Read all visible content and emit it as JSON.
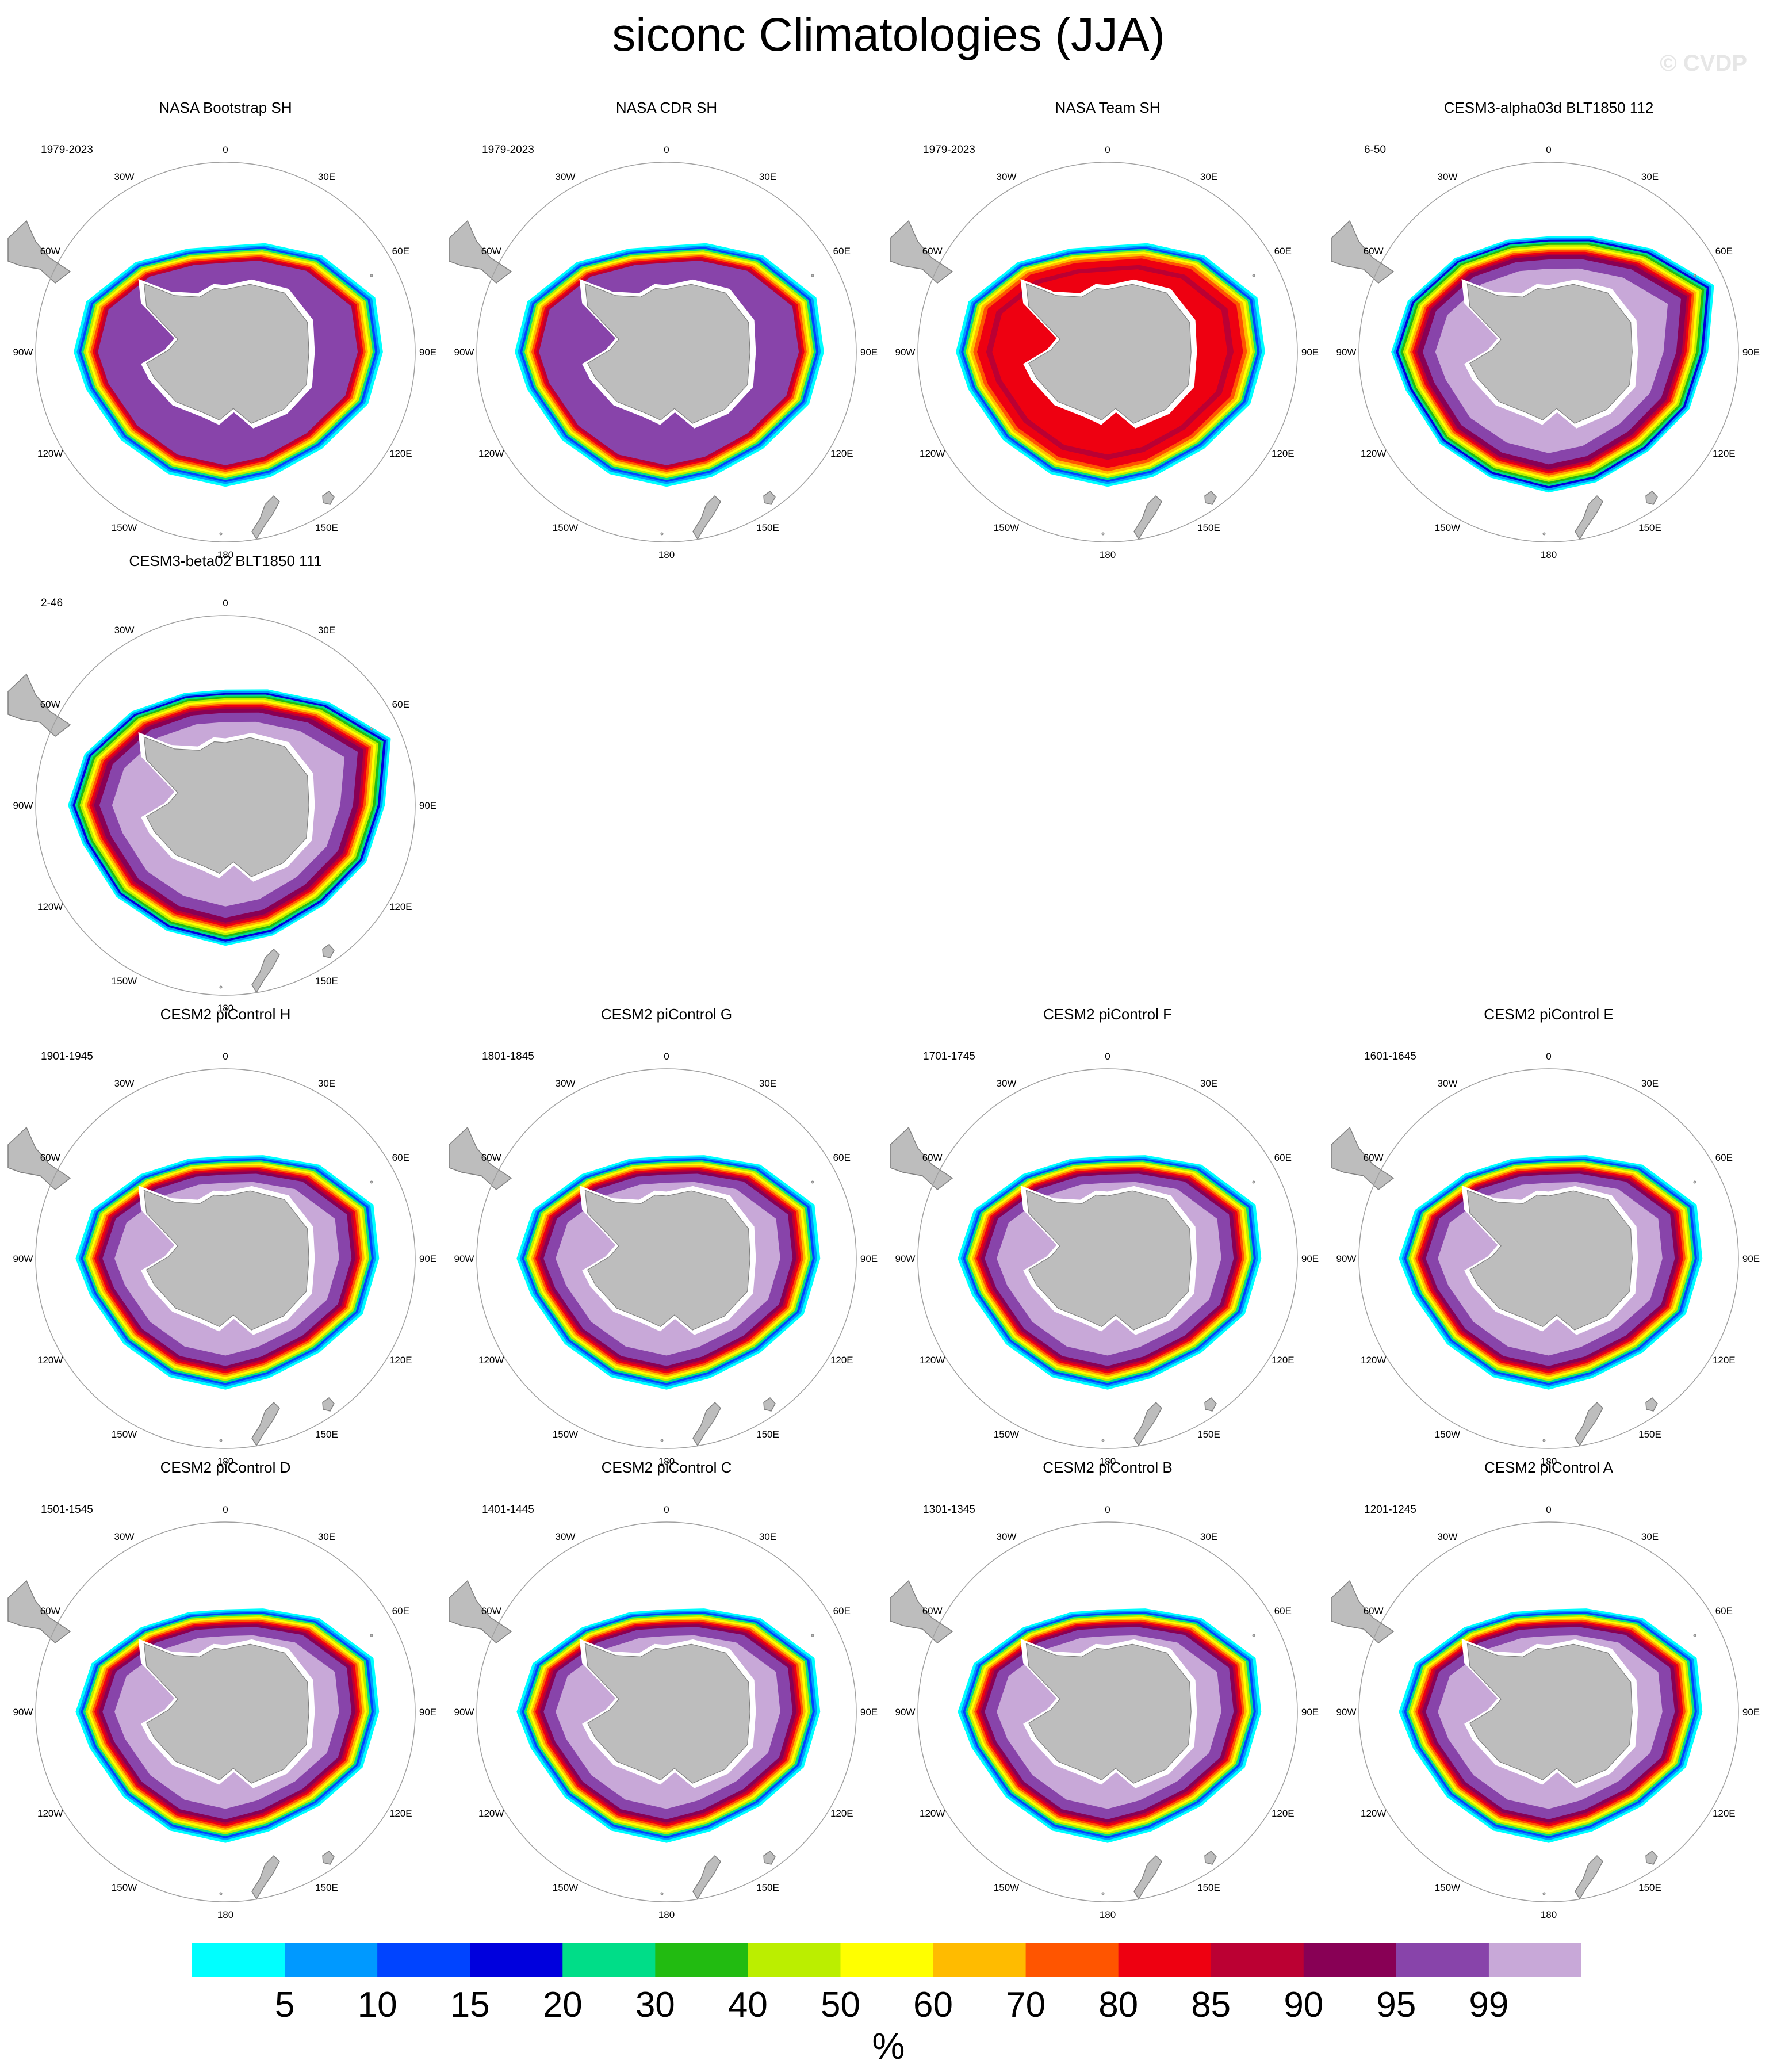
{
  "title": "siconc Climatologies (JJA)",
  "watermark": "© CVDP",
  "colors": {
    "land": "#bdbdbd",
    "land_edge": "#808080",
    "map_edge": "#a0a0a0"
  },
  "colorbar": {
    "unit": "%",
    "labels": [
      "5",
      "10",
      "15",
      "20",
      "30",
      "40",
      "50",
      "60",
      "70",
      "80",
      "85",
      "90",
      "95",
      "99"
    ],
    "colors": [
      "#00ffff",
      "#0099ff",
      "#0044ff",
      "#0000dd",
      "#00dd88",
      "#22bb11",
      "#bbee00",
      "#ffff00",
      "#ffbb00",
      "#ff5500",
      "#ee0011",
      "#bb0033",
      "#880055",
      "#8844aa",
      "#c8a8d8"
    ]
  },
  "longitude_labels": [
    "0",
    "30E",
    "60E",
    "90E",
    "120E",
    "150E",
    "180",
    "150W",
    "120W",
    "90W",
    "60W",
    "30W"
  ],
  "panels": [
    {
      "title": "NASA Bootstrap SH",
      "years": "1979-2023",
      "row": 0,
      "col": 0,
      "style": "obs"
    },
    {
      "title": "NASA CDR SH",
      "years": "1979-2023",
      "row": 0,
      "col": 1,
      "style": "obs"
    },
    {
      "title": "NASA Team SH",
      "years": "1979-2023",
      "row": 0,
      "col": 2,
      "style": "team"
    },
    {
      "title": "CESM3-alpha03d BLT1850 112",
      "years": "6-50",
      "row": 0,
      "col": 3,
      "style": "cesm3"
    },
    {
      "title": "CESM3-beta02 BLT1850 111",
      "years": "2-46",
      "row": 1,
      "col": 0,
      "style": "cesm3"
    },
    {
      "title": "CESM2 piControl H",
      "years": "1901-1945",
      "row": 2,
      "col": 0,
      "style": "cesm2"
    },
    {
      "title": "CESM2 piControl G",
      "years": "1801-1845",
      "row": 2,
      "col": 1,
      "style": "cesm2"
    },
    {
      "title": "CESM2 piControl F",
      "years": "1701-1745",
      "row": 2,
      "col": 2,
      "style": "cesm2"
    },
    {
      "title": "CESM2 piControl E",
      "years": "1601-1645",
      "row": 2,
      "col": 3,
      "style": "cesm2"
    },
    {
      "title": "CESM2 piControl D",
      "years": "1501-1545",
      "row": 3,
      "col": 0,
      "style": "cesm2"
    },
    {
      "title": "CESM2 piControl C",
      "years": "1401-1445",
      "row": 3,
      "col": 1,
      "style": "cesm2"
    },
    {
      "title": "CESM2 piControl B",
      "years": "1301-1345",
      "row": 3,
      "col": 2,
      "style": "cesm2"
    },
    {
      "title": "CESM2 piControl A",
      "years": "1201-1245",
      "row": 3,
      "col": 3,
      "style": "cesm2"
    }
  ]
}
